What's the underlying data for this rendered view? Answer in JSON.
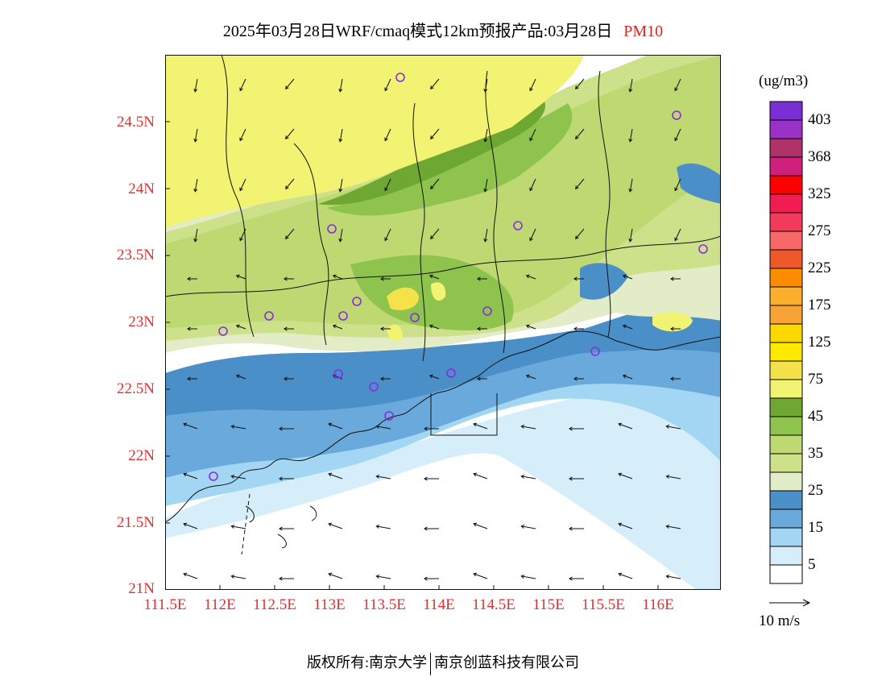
{
  "title": {
    "main": "2025年03月28日WRF/cmaq模式12km预报产品:03月28日",
    "pollutant": "PM10"
  },
  "axes": {
    "y_labels": [
      "24.5N",
      "24N",
      "23.5N",
      "23N",
      "22.5N",
      "22N",
      "21.5N",
      "21N"
    ],
    "x_labels": [
      "111.5E",
      "112E",
      "112.5E",
      "113E",
      "113.5E",
      "114E",
      "114.5E",
      "115E",
      "115.5E",
      "116E"
    ],
    "lat_range": [
      21,
      25
    ],
    "lon_range": [
      111.5,
      116.6
    ]
  },
  "legend": {
    "unit": "(ug/m3)",
    "tick_labels": [
      "403",
      "368",
      "325",
      "275",
      "225",
      "175",
      "125",
      "75",
      "45",
      "35",
      "25",
      "15",
      "5"
    ],
    "colors": [
      "#7b2ed6",
      "#9a32c8",
      "#b03068",
      "#d0207e",
      "#ff0000",
      "#f01c52",
      "#f43a5a",
      "#f86868",
      "#f0582a",
      "#fb8c00",
      "#fbaf2d",
      "#f7a336",
      "#fcd700",
      "#fde800",
      "#f5e24a",
      "#f2f372",
      "#6fa733",
      "#8ec44e",
      "#bed972",
      "#cde08a",
      "#e2ecc6",
      "#4a8fc8",
      "#6aa9dc",
      "#a2d6f2",
      "#d6eefa",
      "#ffffff"
    ]
  },
  "wind_reference": {
    "label": "10 m/s"
  },
  "stations": 16,
  "footer": {
    "copyright": "版权所有:南京大学",
    "company": "南京创蓝科技有限公司"
  }
}
